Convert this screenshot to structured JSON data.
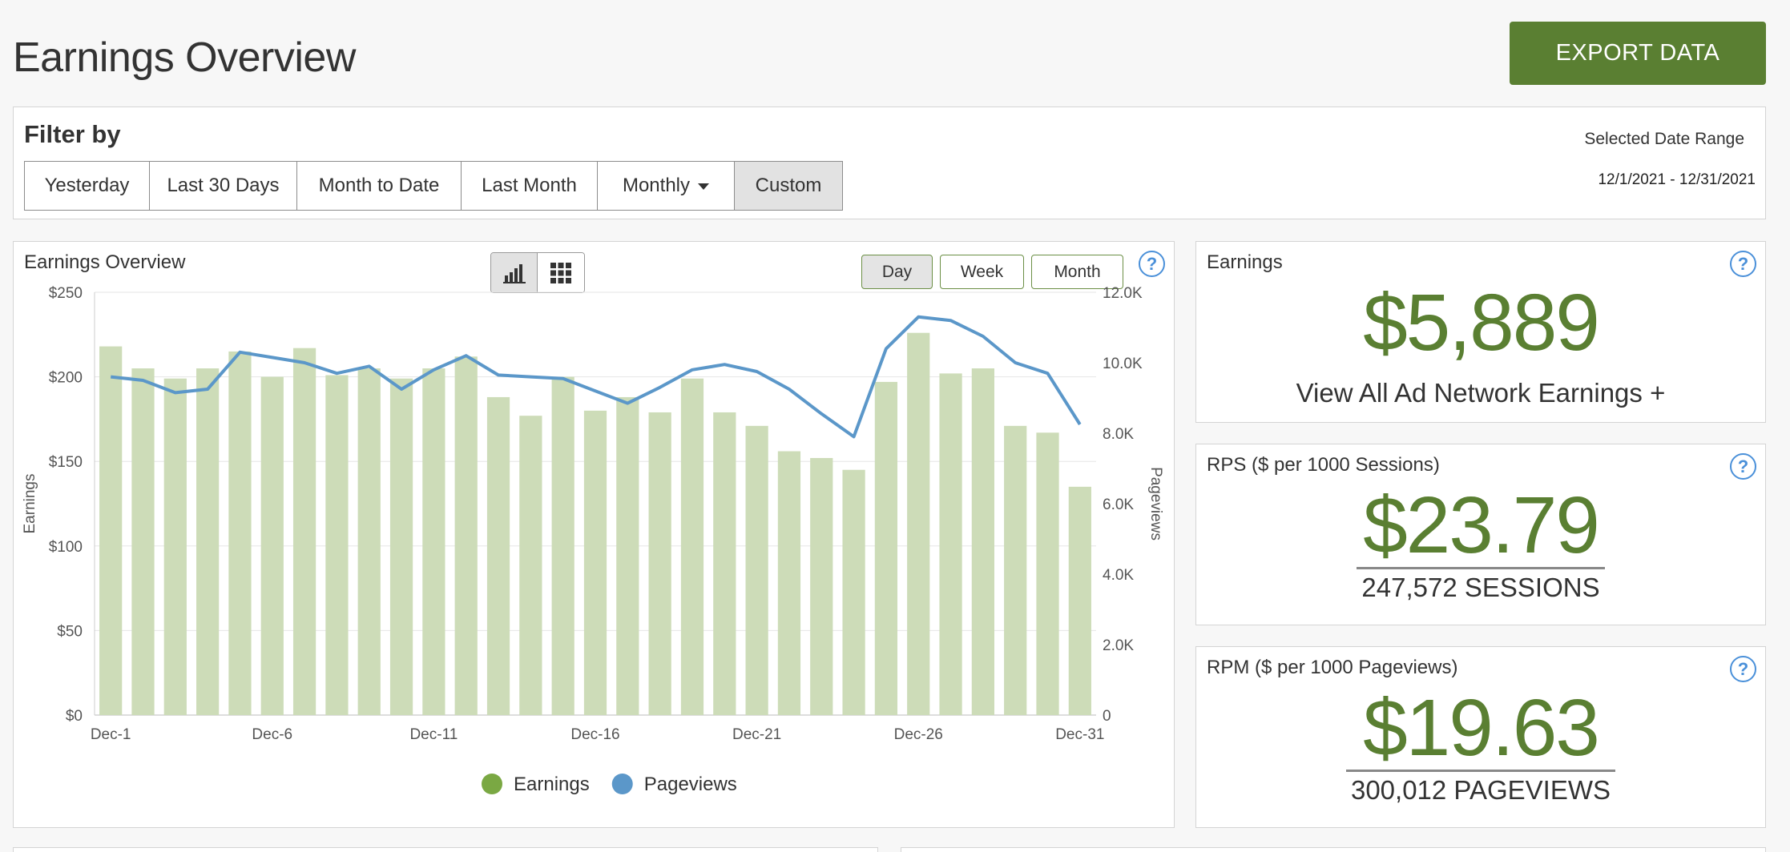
{
  "header": {
    "title": "Earnings Overview",
    "export_label": "EXPORT DATA"
  },
  "filter": {
    "title": "Filter by",
    "buttons": [
      {
        "label": "Yesterday"
      },
      {
        "label": "Last 30 Days"
      },
      {
        "label": "Month to Date"
      },
      {
        "label": "Last Month"
      },
      {
        "label": "Monthly"
      },
      {
        "label": "Custom"
      }
    ],
    "active": "Custom",
    "date_range_label": "Selected Date Range",
    "date_range_value": "12/1/2021 - 12/31/2021"
  },
  "chart_panel": {
    "title": "Earnings Overview",
    "view_toggle": [
      "bar-chart-icon",
      "grid-icon"
    ],
    "ranges": [
      {
        "label": "Day"
      },
      {
        "label": "Week"
      },
      {
        "label": "Month"
      }
    ],
    "active_range": "Day"
  },
  "chart_data": {
    "type": "bar+line",
    "title": "",
    "categories": [
      "Dec-1",
      "Dec-2",
      "Dec-3",
      "Dec-4",
      "Dec-5",
      "Dec-6",
      "Dec-7",
      "Dec-8",
      "Dec-9",
      "Dec-10",
      "Dec-11",
      "Dec-12",
      "Dec-13",
      "Dec-14",
      "Dec-15",
      "Dec-16",
      "Dec-17",
      "Dec-18",
      "Dec-19",
      "Dec-20",
      "Dec-21",
      "Dec-22",
      "Dec-23",
      "Dec-24",
      "Dec-25",
      "Dec-26",
      "Dec-27",
      "Dec-28",
      "Dec-29",
      "Dec-30",
      "Dec-31"
    ],
    "x_tick_labels": [
      "Dec-1",
      "Dec-6",
      "Dec-11",
      "Dec-16",
      "Dec-21",
      "Dec-26",
      "Dec-31"
    ],
    "series": [
      {
        "name": "Earnings",
        "type": "bar",
        "axis": "left",
        "color": "#cddcb8",
        "values": [
          218,
          205,
          199,
          205,
          215,
          200,
          217,
          201,
          205,
          199,
          205,
          212,
          188,
          177,
          200,
          180,
          188,
          179,
          199,
          179,
          171,
          156,
          152,
          145,
          197,
          226,
          202,
          205,
          171,
          167,
          135
        ]
      },
      {
        "name": "Pageviews",
        "type": "line",
        "axis": "right",
        "color": "#5b97c9",
        "values": [
          9600,
          9500,
          9150,
          9250,
          10300,
          10150,
          10000,
          9700,
          9900,
          9250,
          9800,
          10200,
          9650,
          9600,
          9550,
          9200,
          8850,
          9300,
          9800,
          9950,
          9750,
          9250,
          8550,
          7900,
          10400,
          11300,
          11200,
          10750,
          10000,
          9700,
          8250
        ]
      }
    ],
    "ylabel": "Earnings",
    "ylim": [
      0,
      250
    ],
    "y_ticks": [
      "$0",
      "$50",
      "$100",
      "$150",
      "$200",
      "$250"
    ],
    "y2label": "Pageviews",
    "y2lim": [
      0,
      12000
    ],
    "y2_ticks": [
      "0",
      "2.0K",
      "4.0K",
      "6.0K",
      "8.0K",
      "10.0K",
      "12.0K"
    ],
    "grid": true,
    "legend": "bottom-center",
    "legend_items": [
      {
        "label": "Earnings",
        "color": "#7aa843"
      },
      {
        "label": "Pageviews",
        "color": "#5b97c9"
      }
    ]
  },
  "metrics": {
    "earnings": {
      "label": "Earnings",
      "value": "$5,889",
      "link": "View All Ad Network Earnings +"
    },
    "rps": {
      "label": "RPS ($ per 1000 Sessions)",
      "value": "$23.79",
      "sub": "247,572 SESSIONS"
    },
    "rpm": {
      "label": "RPM ($ per 1000 Pageviews)",
      "value": "$19.63",
      "sub": "300,012 PAGEVIEWS"
    }
  },
  "colors": {
    "brand_green": "#5a7f32",
    "help_blue": "#4a90d9"
  }
}
